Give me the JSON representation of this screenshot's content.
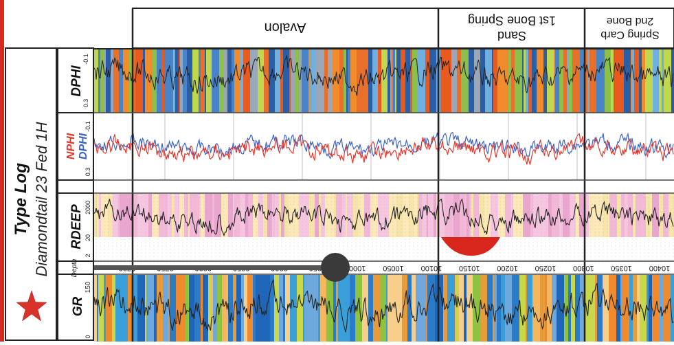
{
  "title": {
    "main": "Type Log",
    "well": "Diamondtail 23 Fed 1H"
  },
  "zones": [
    {
      "lines": [
        "Avalon"
      ]
    },
    {
      "lines": [
        "Sand",
        "1st Bone Spring"
      ]
    },
    {
      "lines": [
        "Spring Carb",
        "2nd Bone"
      ]
    }
  ],
  "tracks": {
    "dphi": {
      "label": "DPHI",
      "scale_top": "-0.1",
      "scale_bottom": "0.3"
    },
    "porosity": {
      "label_n": "NPHI",
      "label_d": "DPHI",
      "scale_top": "-0.1",
      "scale_bottom": "0.3"
    },
    "rdeep": {
      "label": "RDEEP",
      "scale_top": "2000",
      "scale_mid": "20",
      "scale_bottom": "2"
    },
    "depth": {
      "label": "Depth",
      "ticks": [
        "9700",
        "9750",
        "9800",
        "9850",
        "9900",
        "9950",
        "10000",
        "10050",
        "10100",
        "10150",
        "10200",
        "10250",
        "10300",
        "10350",
        "10400"
      ]
    },
    "gr": {
      "label": "GR",
      "scale_top": "150",
      "scale_bottom": "0"
    }
  },
  "icons": {
    "badge": "star-icon",
    "marker": "depth-marker-icon"
  },
  "colors": {
    "nphi": "#e8352a",
    "dphi": "#3b62c6",
    "star": "#d8322a",
    "red_border": "#d42a1f"
  }
}
